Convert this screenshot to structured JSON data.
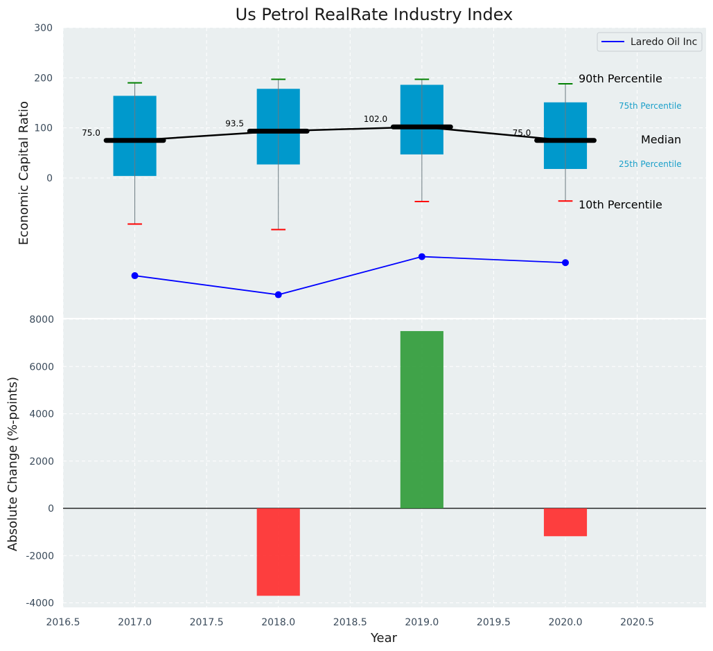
{
  "chart_data": [
    {
      "type": "box",
      "title": "Us Petrol RealRate Industry Index",
      "ylabel": "Economic Capital Ratio",
      "ylim": [
        -285,
        300
      ],
      "yticks": [
        0,
        100,
        200,
        300
      ],
      "x": [
        2017,
        2018,
        2019,
        2020
      ],
      "boxes": [
        {
          "year": 2017,
          "p10": -92,
          "p25": 4,
          "median": 75,
          "p75": 164,
          "p90": 190,
          "median_label": "75.0"
        },
        {
          "year": 2018,
          "p10": -103,
          "p25": 27,
          "median": 93.5,
          "p75": 178,
          "p90": 197,
          "median_label": "93.5"
        },
        {
          "year": 2019,
          "p10": -47,
          "p25": 47,
          "median": 102,
          "p75": 186,
          "p90": 197,
          "median_label": "102.0"
        },
        {
          "year": 2020,
          "p10": -46,
          "p25": 18,
          "median": 75,
          "p75": 151,
          "p90": 188,
          "median_label": "75.0"
        }
      ],
      "series": [
        {
          "name": "Laredo Oil Inc",
          "color": "#0000ff",
          "values": [
            -195,
            -233,
            -157,
            -169
          ]
        }
      ],
      "legend": {
        "position": "top-right",
        "entries": [
          "Laredo Oil Inc"
        ]
      },
      "annotations": {
        "p90": "90th Percentile",
        "p75": "75th Percentile",
        "median": "Median",
        "p25": "25th Percentile",
        "p10": "10th Percentile"
      }
    },
    {
      "type": "bar",
      "xlabel": "Year",
      "ylabel": "Absolute Change (%-points)",
      "ylim": [
        -4200,
        8000
      ],
      "yticks": [
        -4000,
        -2000,
        0,
        2000,
        4000,
        6000,
        8000
      ],
      "xlim": [
        2016.5,
        2020.98
      ],
      "xticks": [
        2016.5,
        2017.0,
        2017.5,
        2018.0,
        2018.5,
        2019.0,
        2019.5,
        2020.0,
        2020.5
      ],
      "xtick_labels": [
        "2016.5",
        "2017.0",
        "2017.5",
        "2018.0",
        "2018.5",
        "2019.0",
        "2019.5",
        "2020.0",
        "2020.5"
      ],
      "categories": [
        2018,
        2019,
        2020
      ],
      "values": [
        -3700,
        7500,
        -1180
      ],
      "colors": {
        "positive": "#2e9a36",
        "negative": "#ff2a2a"
      }
    }
  ],
  "colors": {
    "box_fill": "#0099cc",
    "median_line": "#000000",
    "whisker_high": "#008000",
    "whisker_low": "#ff0000",
    "plot_bg": "#eaeff0",
    "annotation_blue": "#1a9fc9"
  }
}
